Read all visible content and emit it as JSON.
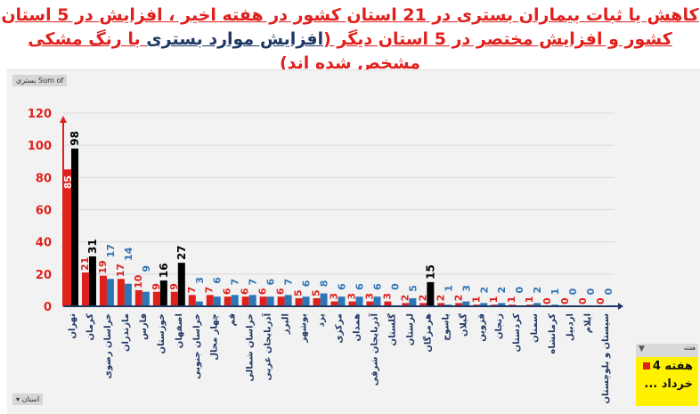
{
  "title": {
    "part1": "کاهش یا ثبات بیماران بستری در 21 استان کشور در هفته اخیر ، افزایش در 5 استان کشور و افزایش مختصر در 5 استان دیگر (",
    "highlight": "افزایش موارد بستری",
    "part2": " با رنگ مشکی مشخص شده اند)"
  },
  "pivot": {
    "value_field": "Sum of بستری",
    "axis_field": "استان",
    "slicer": {
      "header": "هفته",
      "item_line1": "هفته 4",
      "item_line2": "خرداد ..."
    }
  },
  "colors": {
    "previous": "#e0201c",
    "current": "#2e75b6",
    "increase": "#000000",
    "axis_text": "#1f3864",
    "title": "#e0201c"
  },
  "chart_data": {
    "type": "bar",
    "ylim": [
      0,
      120
    ],
    "yticks": [
      0,
      20,
      40,
      60,
      80,
      100,
      120
    ],
    "grid": true,
    "categories": [
      "تهران",
      "کرمان",
      "خراسان رضوی",
      "مازندران",
      "فارس",
      "خوزستان",
      "اصفهان",
      "خراسان جنوبی",
      "چهار محال",
      "قم",
      "خراسان شمالی",
      "آذربایجان غربی",
      "البرز",
      "بوشهر",
      "یزد",
      "مرکزی",
      "همدان",
      "آذربایجان شرقی",
      "گلستان",
      "لرستان",
      "هرمزگان",
      "یاسوج",
      "گیلان",
      "قزوین",
      "زنجان",
      "کردستان",
      "سمنان",
      "کرمانشاه",
      "اردبیل",
      "ایلام",
      "سیستان و بلوچستان"
    ],
    "series": [
      {
        "values": [
          85,
          21,
          19,
          17,
          10,
          9,
          9,
          7,
          7,
          6,
          6,
          6,
          6,
          5,
          5,
          3,
          3,
          3,
          3,
          2,
          2,
          2,
          2,
          1,
          1,
          1,
          1,
          0,
          0,
          0,
          0
        ]
      },
      {
        "values": [
          98,
          31,
          17,
          14,
          9,
          16,
          27,
          3,
          6,
          7,
          7,
          6,
          7,
          6,
          8,
          6,
          6,
          6,
          0,
          5,
          15,
          1,
          3,
          2,
          2,
          0,
          2,
          1,
          0,
          0,
          0
        ]
      }
    ],
    "increased": [
      "تهران",
      "کرمان",
      "خوزستان",
      "اصفهان",
      "هرمزگان"
    ]
  }
}
